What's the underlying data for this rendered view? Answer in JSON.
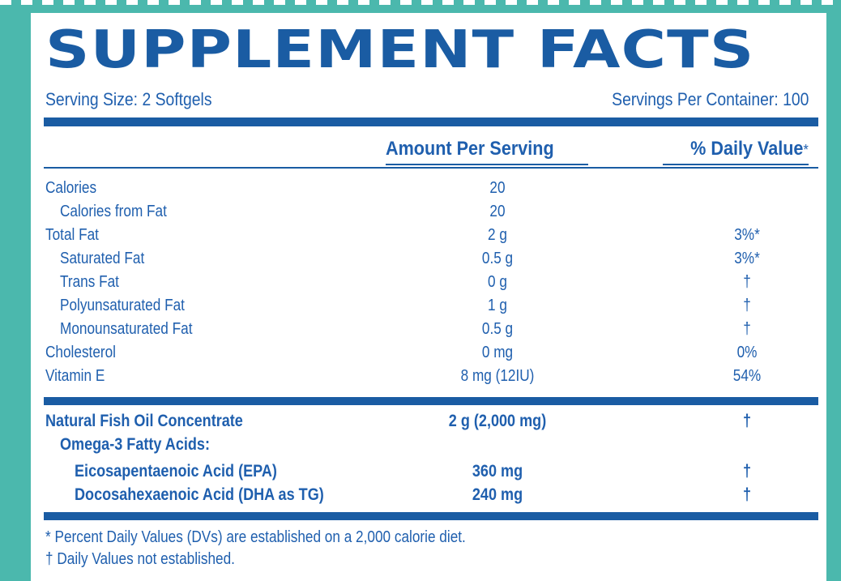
{
  "title": "SUPPLEMENT FACTS",
  "serving_size": "Serving Size: 2 Softgels",
  "servings_per_container": "Servings Per Container: 100",
  "headers": {
    "amount": "Amount Per Serving",
    "daily_value": "% Daily Value",
    "daily_value_mark": "*"
  },
  "nutrients": [
    {
      "label": "Calories",
      "amount": "20",
      "dv": ""
    },
    {
      "label": "Calories from Fat",
      "amount": "20",
      "dv": ""
    },
    {
      "label": "Total Fat",
      "amount": "2 g",
      "dv": "3%*"
    },
    {
      "label": "Saturated Fat",
      "amount": "0.5 g",
      "dv": "3%*"
    },
    {
      "label": "Trans Fat",
      "amount": "0 g",
      "dv": "†"
    },
    {
      "label": "Polyunsaturated Fat",
      "amount": "1 g",
      "dv": "†"
    },
    {
      "label": "Monounsaturated Fat",
      "amount": "0.5 g",
      "dv": "†"
    },
    {
      "label": "Cholesterol",
      "amount": "0 mg",
      "dv": "0%"
    },
    {
      "label": "Vitamin E",
      "amount": "8 mg (12IU)",
      "dv": "54%"
    }
  ],
  "actives": [
    {
      "label": "Natural Fish Oil Concentrate",
      "amount": "2 g (2,000 mg)",
      "dv": "†"
    },
    {
      "label": "Omega-3 Fatty Acids:",
      "amount": "",
      "dv": ""
    },
    {
      "label": "Eicosapentaenoic Acid (EPA)",
      "amount": "360 mg",
      "dv": "†"
    },
    {
      "label": "Docosahexaenoic Acid (DHA as TG)",
      "amount": "240 mg",
      "dv": "†"
    }
  ],
  "footnotes": [
    "* Percent Daily Values (DVs) are established on a 2,000 calorie diet.",
    "† Daily Values not established."
  ],
  "colors": {
    "background": "#4bb8ad",
    "panel": "#ffffff",
    "ink": "#1a5ca3"
  }
}
